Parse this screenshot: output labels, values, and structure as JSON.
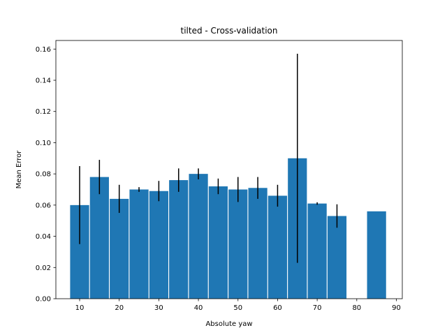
{
  "chart_data": {
    "type": "bar",
    "title": "tilted - Cross-validation",
    "xlabel": "Absolute yaw",
    "ylabel": "Mean Error",
    "xlim": [
      4,
      91.5
    ],
    "ylim": [
      0,
      0.1655
    ],
    "bar_width": 4.8,
    "bar_color": "#1f77b4",
    "error_color": "#000000",
    "grid": false,
    "x": [
      10,
      15,
      20,
      25,
      30,
      35,
      40,
      45,
      50,
      55,
      60,
      65,
      70,
      75,
      85
    ],
    "values": [
      0.06,
      0.078,
      0.064,
      0.07,
      0.069,
      0.076,
      0.08,
      0.072,
      0.07,
      0.071,
      0.066,
      0.09,
      0.061,
      0.053,
      0.056
    ],
    "errors": [
      0.025,
      0.011,
      0.009,
      0.0015,
      0.0065,
      0.0075,
      0.0035,
      0.005,
      0.008,
      0.007,
      0.007,
      0.067,
      0.0008,
      0.0075,
      0
    ],
    "x_ticks": [
      10,
      20,
      30,
      40,
      50,
      60,
      70,
      80,
      90
    ],
    "x_tick_labels": [
      "10",
      "20",
      "30",
      "40",
      "50",
      "60",
      "70",
      "80",
      "90"
    ],
    "y_ticks": [
      0.0,
      0.02,
      0.04,
      0.06,
      0.08,
      0.1,
      0.12,
      0.14,
      0.16
    ],
    "y_tick_labels": [
      "0.00",
      "0.02",
      "0.04",
      "0.06",
      "0.08",
      "0.10",
      "0.12",
      "0.14",
      "0.16"
    ]
  }
}
